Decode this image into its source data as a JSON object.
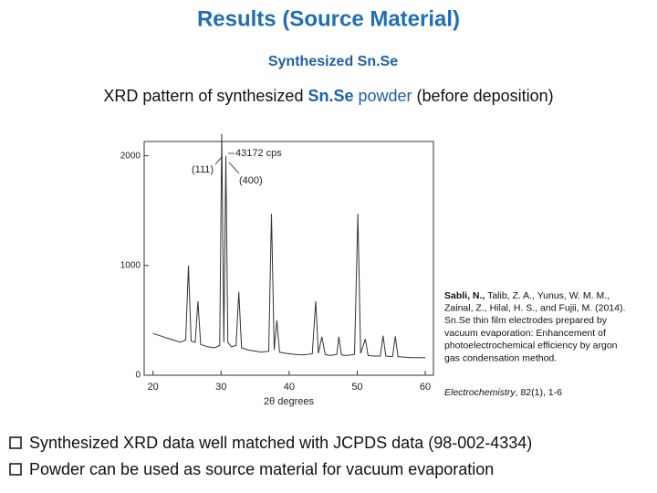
{
  "header": {
    "title": "Results (Source Material)",
    "subtitle": "Synthesized Sn.Se"
  },
  "description": {
    "part1": "XRD pattern of synthesized ",
    "part2": "Sn.Se",
    "part3": " powder",
    "part4": " (before deposition)"
  },
  "chart_data": {
    "type": "line",
    "color": "#333333",
    "x": [
      20,
      21,
      22,
      23,
      24,
      24.8,
      25.2,
      25.6,
      26.2,
      26.6,
      27,
      28,
      29,
      29.8,
      30.1,
      30.4,
      30.7,
      31,
      31.5,
      32.2,
      32.6,
      33,
      34,
      35,
      36,
      37,
      37.4,
      37.8,
      38.2,
      38.6,
      39.5,
      41,
      42,
      43.4,
      43.9,
      44.3,
      44.8,
      45.3,
      46,
      47,
      47.3,
      47.7,
      48.5,
      49.6,
      50.1,
      50.5,
      51.2,
      51.6,
      52.5,
      53.4,
      53.8,
      54.2,
      55.2,
      55.6,
      56,
      57,
      58,
      59,
      60
    ],
    "values": [
      380,
      360,
      340,
      320,
      300,
      320,
      1000,
      310,
      300,
      675,
      280,
      260,
      250,
      270,
      2200,
      300,
      2000,
      300,
      260,
      270,
      760,
      250,
      230,
      220,
      210,
      220,
      1470,
      230,
      500,
      210,
      200,
      190,
      185,
      195,
      675,
      200,
      350,
      190,
      180,
      190,
      350,
      185,
      180,
      190,
      1470,
      200,
      330,
      180,
      175,
      175,
      360,
      175,
      170,
      355,
      170,
      165,
      160,
      160,
      160
    ],
    "xlim": [
      18.7,
      61.2
    ],
    "ylim": [
      0,
      2130
    ],
    "xticks": [
      20,
      30,
      40,
      50,
      60
    ],
    "yticks": [
      0,
      1000,
      2000
    ],
    "xlabel": "2θ degrees",
    "annotations": {
      "cps": "43172 cps",
      "p111": "(111)",
      "p400": "(400)"
    }
  },
  "citation": {
    "bold": "Sabli, N.,",
    "line0": " Talib, Z. A., Yunus, W. M. M.,",
    "lines": [
      "Zainal, Z., Hilal, H. S., and Fujii, M. (2014).",
      "Sn.Se thin film electrodes prepared by",
      "vacuum evaporation: Enhancement of",
      "photoelectrochemical efficiency by argon",
      "gas condensation method."
    ],
    "journal": "Electrochemistry",
    "ref": ", 82(1), 1-6"
  },
  "bullets": [
    "Synthesized XRD data well matched with JCPDS data (98-002-4334)",
    "Powder can be used as source material for vacuum evaporation"
  ]
}
